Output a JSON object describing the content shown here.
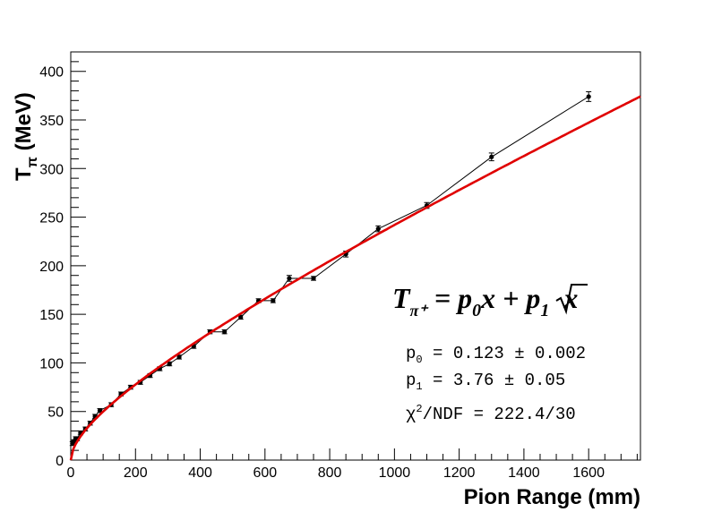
{
  "chart_data": {
    "type": "scatter",
    "xlabel": "Pion Range (mm)",
    "ylabel_main": "T",
    "ylabel_sub": "π",
    "ylabel_unit": " (MeV)",
    "xlim": [
      0,
      1760
    ],
    "ylim": [
      0,
      420
    ],
    "x_ticks": [
      0,
      200,
      400,
      600,
      800,
      1000,
      1200,
      1400,
      1600
    ],
    "y_ticks": [
      0,
      50,
      100,
      150,
      200,
      250,
      300,
      350,
      400
    ],
    "series": [
      {
        "type": "data_with_errors",
        "x": [
          5,
          10,
          15,
          20,
          30,
          45,
          60,
          75,
          90,
          125,
          155,
          185,
          215,
          245,
          275,
          305,
          335,
          380,
          430,
          475,
          525,
          580,
          625,
          675,
          750,
          850,
          950,
          1100,
          1300,
          1600
        ],
        "y": [
          17,
          19,
          22,
          22,
          28,
          32,
          38,
          45,
          51,
          57,
          68,
          75,
          80,
          87,
          94,
          99,
          106,
          117,
          132,
          132,
          147,
          164,
          164,
          187,
          187,
          212,
          238,
          262,
          312,
          374
        ],
        "err": [
          2,
          2,
          2,
          2,
          2,
          2,
          2,
          2,
          2,
          2,
          2,
          2,
          2,
          2,
          2,
          2,
          2,
          2,
          2,
          2,
          2,
          2,
          2,
          3,
          2,
          3,
          3,
          3,
          4,
          5
        ]
      },
      {
        "type": "fit",
        "p0": 0.123,
        "p1": 3.76,
        "x_range": [
          0,
          1760
        ],
        "color": "#e00000"
      }
    ],
    "annotations": {
      "formula_T": "T",
      "formula_sub": "π⁺",
      "formula_eq": " = p",
      "formula_0": "0",
      "formula_mid": "x + p",
      "formula_1": "1",
      "formula_x": "x",
      "p0_label": "p",
      "p0_sub": "0",
      "p0_value": " = 0.123 ± 0.002",
      "p1_label": "p",
      "p1_sub": "1",
      "p1_value": " = 3.76 ± 0.05",
      "chi_label": "χ",
      "chi_sup": "2",
      "chi_value": "/NDF = 222.4/30"
    },
    "colors": {
      "data": "#000000",
      "fit": "#e00000"
    }
  }
}
